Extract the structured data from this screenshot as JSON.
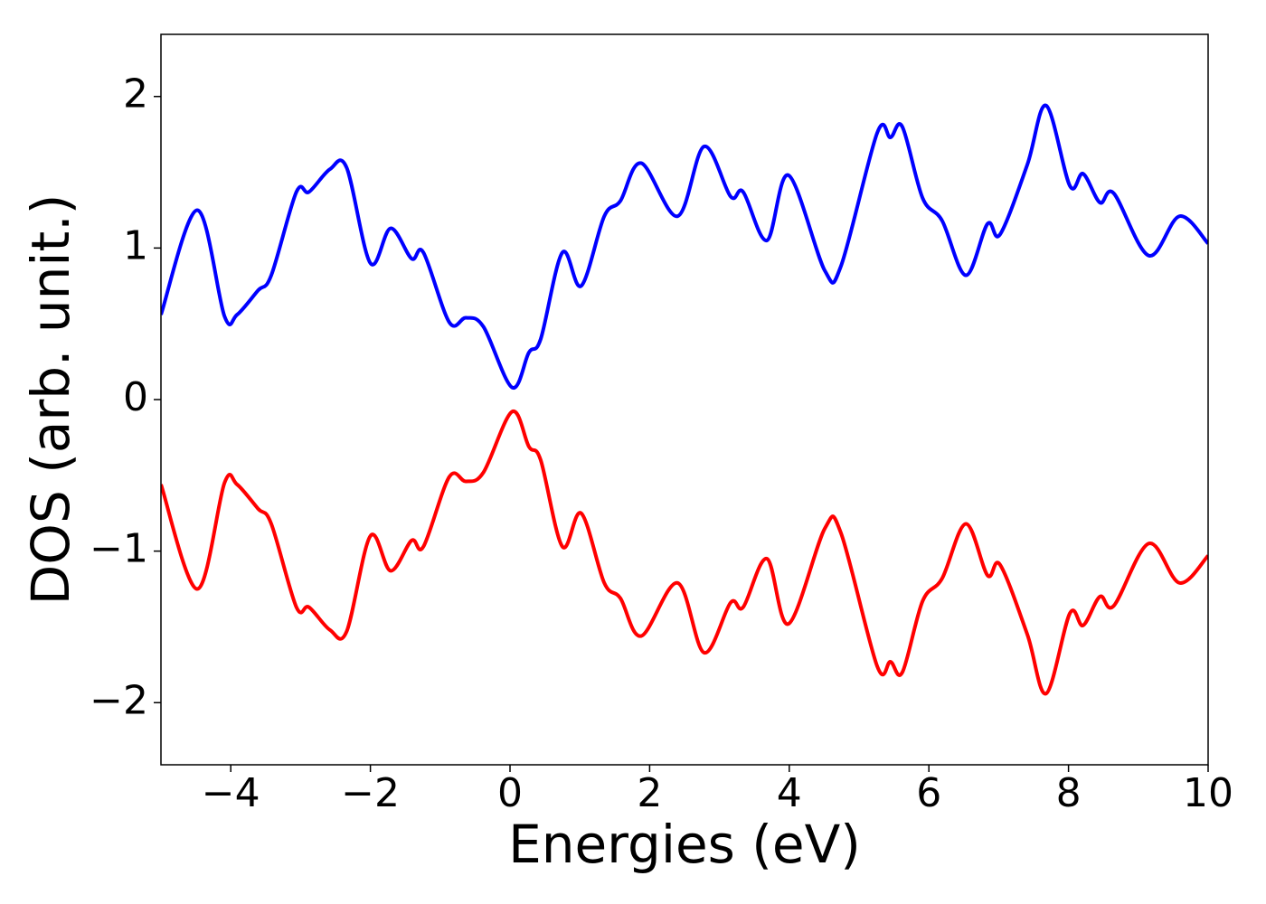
{
  "chart_data": {
    "type": "line",
    "xlabel": "Energies (eV)",
    "ylabel": "DOS (arb. unit.)",
    "x": [
      -5,
      -4.48,
      -4.09,
      -3.91,
      -3.61,
      -3.42,
      -3.06,
      -2.88,
      -2.58,
      -2.34,
      -2.0,
      -1.71,
      -1.41,
      -1.24,
      -0.87,
      -0.63,
      -0.38,
      0.03,
      0.27,
      0.44,
      0.75,
      1.02,
      1.35,
      1.58,
      1.88,
      2.4,
      2.78,
      3.16,
      3.34,
      3.68,
      3.99,
      4.51,
      4.74,
      5.26,
      5.45,
      5.62,
      5.91,
      6.19,
      6.53,
      6.84,
      7.02,
      7.41,
      7.68,
      8.02,
      8.21,
      8.45,
      8.65,
      9.15,
      9.59,
      10
    ],
    "series": [
      {
        "color": "#0000ff",
        "values": [
          0.56,
          1.25,
          0.55,
          0.56,
          0.72,
          0.82,
          1.37,
          1.37,
          1.52,
          1.53,
          0.9,
          1.13,
          0.93,
          0.97,
          0.51,
          0.54,
          0.48,
          0.08,
          0.31,
          0.4,
          0.97,
          0.75,
          1.21,
          1.31,
          1.56,
          1.21,
          1.67,
          1.34,
          1.37,
          1.05,
          1.48,
          0.85,
          0.88,
          1.76,
          1.73,
          1.8,
          1.33,
          1.18,
          0.82,
          1.16,
          1.09,
          1.55,
          1.94,
          1.41,
          1.49,
          1.3,
          1.36,
          0.95,
          1.21,
          1.03
        ]
      },
      {
        "color": "#ff0000",
        "values": [
          -0.56,
          -1.25,
          -0.55,
          -0.56,
          -0.72,
          -0.82,
          -1.37,
          -1.37,
          -1.52,
          -1.53,
          -0.9,
          -1.13,
          -0.93,
          -0.97,
          -0.51,
          -0.54,
          -0.48,
          -0.08,
          -0.31,
          -0.4,
          -0.97,
          -0.75,
          -1.21,
          -1.31,
          -1.56,
          -1.21,
          -1.67,
          -1.34,
          -1.37,
          -1.05,
          -1.48,
          -0.85,
          -0.88,
          -1.76,
          -1.73,
          -1.8,
          -1.33,
          -1.18,
          -0.82,
          -1.16,
          -1.09,
          -1.55,
          -1.94,
          -1.41,
          -1.49,
          -1.3,
          -1.36,
          -0.95,
          -1.21,
          -1.03
        ]
      }
    ],
    "xlim": [
      -5,
      10
    ],
    "xticks": [
      {
        "value": -4,
        "label": "−4"
      },
      {
        "value": -2,
        "label": "−2"
      },
      0,
      2,
      4,
      6,
      8,
      10
    ],
    "ylim": [
      -2.41,
      2.41
    ],
    "yticks": [
      {
        "value": -2,
        "label": "−2"
      },
      {
        "value": -1,
        "label": "−1"
      },
      0,
      1,
      2
    ]
  }
}
